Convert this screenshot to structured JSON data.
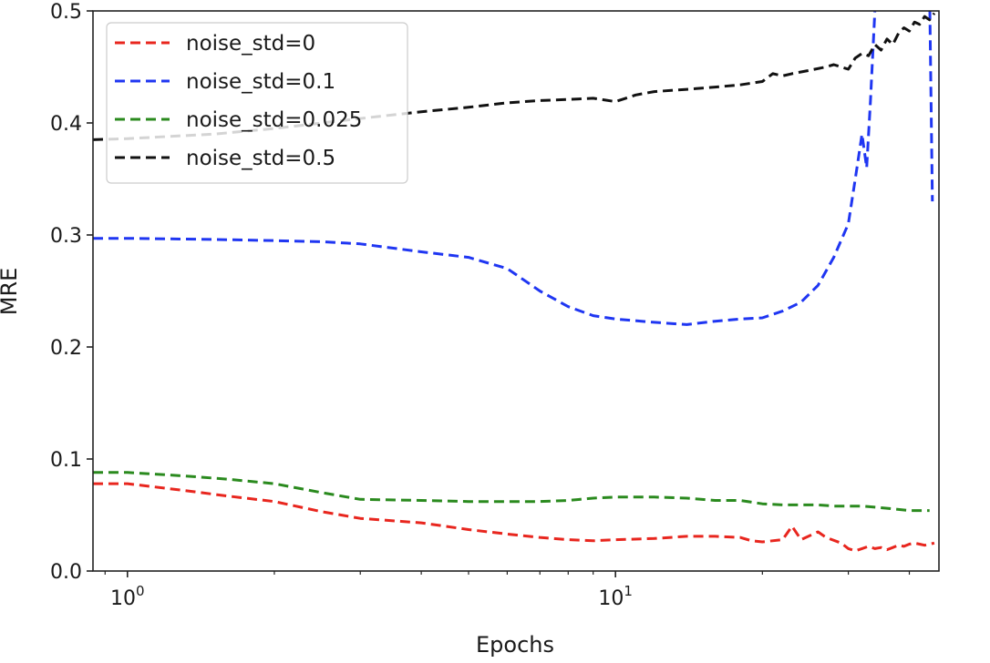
{
  "chart_data": {
    "type": "line",
    "title": "",
    "xlabel": "Epochs",
    "ylabel": "MRE",
    "xscale": "log",
    "xlim": [
      0.85,
      46
    ],
    "ylim": [
      0.0,
      0.5
    ],
    "grid": false,
    "legend_position": "top-left",
    "x_ticks": [
      1,
      10
    ],
    "x_tick_labels": [
      {
        "base": "10",
        "exp": "0"
      },
      {
        "base": "10",
        "exp": "1"
      }
    ],
    "y_ticks": [
      0.0,
      0.1,
      0.2,
      0.3,
      0.4,
      0.5
    ],
    "y_tick_labels": [
      "0.0",
      "0.1",
      "0.2",
      "0.3",
      "0.4",
      "0.5"
    ],
    "series": [
      {
        "name": "noise_std=0",
        "color": "#e8261e",
        "points": [
          [
            0.85,
            0.078
          ],
          [
            1,
            0.078
          ],
          [
            1.3,
            0.072
          ],
          [
            1.6,
            0.067
          ],
          [
            2,
            0.062
          ],
          [
            2.5,
            0.053
          ],
          [
            3,
            0.047
          ],
          [
            4,
            0.043
          ],
          [
            5,
            0.037
          ],
          [
            6,
            0.033
          ],
          [
            7,
            0.03
          ],
          [
            8,
            0.028
          ],
          [
            9,
            0.027
          ],
          [
            10,
            0.028
          ],
          [
            12,
            0.029
          ],
          [
            14,
            0.031
          ],
          [
            16,
            0.031
          ],
          [
            18,
            0.03
          ],
          [
            19,
            0.027
          ],
          [
            20,
            0.026
          ],
          [
            22,
            0.028
          ],
          [
            23,
            0.04
          ],
          [
            24,
            0.028
          ],
          [
            26,
            0.035
          ],
          [
            27,
            0.03
          ],
          [
            29,
            0.025
          ],
          [
            30,
            0.02
          ],
          [
            31,
            0.018
          ],
          [
            32,
            0.02
          ],
          [
            33,
            0.022
          ],
          [
            34,
            0.02
          ],
          [
            35,
            0.021
          ],
          [
            36,
            0.019
          ],
          [
            37,
            0.021
          ],
          [
            38,
            0.023
          ],
          [
            39,
            0.022
          ],
          [
            40,
            0.024
          ],
          [
            41,
            0.025
          ],
          [
            42,
            0.024
          ],
          [
            43,
            0.023
          ],
          [
            44,
            0.024
          ],
          [
            45,
            0.025
          ]
        ]
      },
      {
        "name": "noise_std=0.1",
        "color": "#1f36f2",
        "points": [
          [
            0.85,
            0.297
          ],
          [
            1,
            0.297
          ],
          [
            1.5,
            0.296
          ],
          [
            2,
            0.295
          ],
          [
            2.5,
            0.294
          ],
          [
            3,
            0.292
          ],
          [
            4,
            0.285
          ],
          [
            5,
            0.28
          ],
          [
            6,
            0.27
          ],
          [
            7,
            0.25
          ],
          [
            8,
            0.236
          ],
          [
            9,
            0.228
          ],
          [
            10,
            0.225
          ],
          [
            12,
            0.222
          ],
          [
            14,
            0.22
          ],
          [
            16,
            0.223
          ],
          [
            18,
            0.225
          ],
          [
            20,
            0.226
          ],
          [
            22,
            0.232
          ],
          [
            24,
            0.24
          ],
          [
            26,
            0.255
          ],
          [
            28,
            0.28
          ],
          [
            30,
            0.31
          ],
          [
            31,
            0.35
          ],
          [
            32,
            0.39
          ],
          [
            32.7,
            0.36
          ],
          [
            33.3,
            0.42
          ],
          [
            34,
            0.5
          ],
          [
            34.4,
            0.54
          ],
          [
            44,
            0.52
          ],
          [
            44.6,
            0.33
          ]
        ]
      },
      {
        "name": "noise_std=0.025",
        "color": "#2a8a1e",
        "points": [
          [
            0.85,
            0.088
          ],
          [
            1,
            0.088
          ],
          [
            1.3,
            0.085
          ],
          [
            1.6,
            0.082
          ],
          [
            2,
            0.078
          ],
          [
            2.5,
            0.07
          ],
          [
            3,
            0.064
          ],
          [
            4,
            0.063
          ],
          [
            5,
            0.062
          ],
          [
            6,
            0.062
          ],
          [
            7,
            0.062
          ],
          [
            8,
            0.063
          ],
          [
            9,
            0.065
          ],
          [
            10,
            0.066
          ],
          [
            12,
            0.066
          ],
          [
            14,
            0.065
          ],
          [
            16,
            0.063
          ],
          [
            18,
            0.063
          ],
          [
            20,
            0.06
          ],
          [
            22,
            0.059
          ],
          [
            24,
            0.059
          ],
          [
            26,
            0.059
          ],
          [
            28,
            0.058
          ],
          [
            30,
            0.058
          ],
          [
            32,
            0.058
          ],
          [
            34,
            0.057
          ],
          [
            36,
            0.056
          ],
          [
            38,
            0.055
          ],
          [
            40,
            0.054
          ],
          [
            42,
            0.054
          ],
          [
            44,
            0.054
          ]
        ]
      },
      {
        "name": "noise_std=0.5",
        "color": "#111111",
        "points": [
          [
            0.85,
            0.385
          ],
          [
            1,
            0.386
          ],
          [
            1.5,
            0.39
          ],
          [
            2,
            0.395
          ],
          [
            3,
            0.404
          ],
          [
            4,
            0.41
          ],
          [
            5,
            0.414
          ],
          [
            6,
            0.418
          ],
          [
            7,
            0.42
          ],
          [
            8,
            0.421
          ],
          [
            9,
            0.422
          ],
          [
            10,
            0.419
          ],
          [
            11,
            0.425
          ],
          [
            12,
            0.428
          ],
          [
            14,
            0.43
          ],
          [
            16,
            0.432
          ],
          [
            18,
            0.434
          ],
          [
            20,
            0.437
          ],
          [
            21,
            0.444
          ],
          [
            22,
            0.442
          ],
          [
            23,
            0.444
          ],
          [
            25,
            0.447
          ],
          [
            27,
            0.45
          ],
          [
            28,
            0.452
          ],
          [
            30,
            0.448
          ],
          [
            31,
            0.458
          ],
          [
            32,
            0.462
          ],
          [
            33,
            0.46
          ],
          [
            34,
            0.47
          ],
          [
            35,
            0.465
          ],
          [
            36,
            0.475
          ],
          [
            37,
            0.47
          ],
          [
            38,
            0.48
          ],
          [
            39,
            0.485
          ],
          [
            40,
            0.482
          ],
          [
            41,
            0.49
          ],
          [
            42,
            0.488
          ],
          [
            43,
            0.495
          ],
          [
            44,
            0.492
          ],
          [
            45,
            0.498
          ]
        ]
      }
    ]
  }
}
